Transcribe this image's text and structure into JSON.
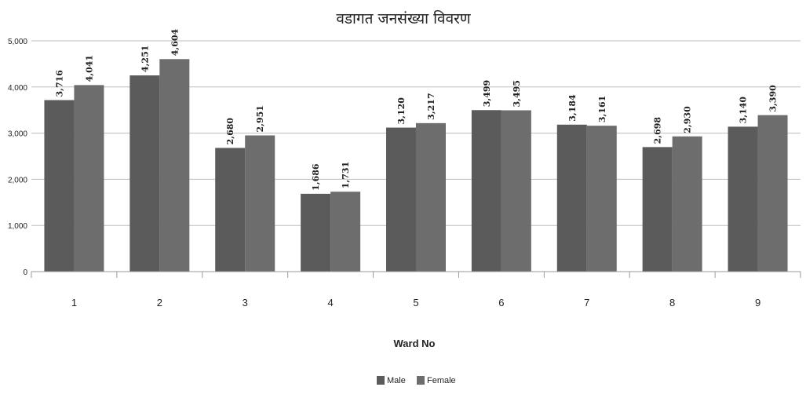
{
  "chart_data": {
    "type": "bar",
    "title": "वडागत जनसंख्या विवरण",
    "xlabel": "Ward No",
    "ylabel": "",
    "categories": [
      "1",
      "2",
      "3",
      "4",
      "5",
      "6",
      "7",
      "8",
      "9"
    ],
    "series": [
      {
        "name": "Male",
        "values": [
          3716,
          4251,
          2680,
          1686,
          3120,
          3499,
          3184,
          2698,
          3140
        ],
        "color": "#5b5b5b"
      },
      {
        "name": "Female",
        "values": [
          4041,
          4604,
          2951,
          1731,
          3217,
          3495,
          3161,
          2930,
          3390
        ],
        "color": "#6d6d6d"
      }
    ],
    "data_labels": {
      "Male": [
        "3,716",
        "4,251",
        "2,680",
        "1,686",
        "3,120",
        "3,499",
        "3,184",
        "2,698",
        "3,140"
      ],
      "Female": [
        "4,041",
        "4,604",
        "2,951",
        "1,731",
        "3,217",
        "3,495",
        "3,161",
        "2,930",
        "3,390"
      ]
    },
    "ylim": [
      0,
      5000
    ],
    "yticks": [
      0,
      1000,
      2000,
      3000,
      4000,
      5000
    ],
    "ytick_labels": [
      "0",
      "1,000",
      "2,000",
      "3,000",
      "4,000",
      "5,000"
    ],
    "grid": true,
    "legend_position": "bottom-center",
    "colors": {
      "text": "#222222",
      "grid": "#bdbdbd",
      "axis": "#9a9a9a"
    }
  }
}
